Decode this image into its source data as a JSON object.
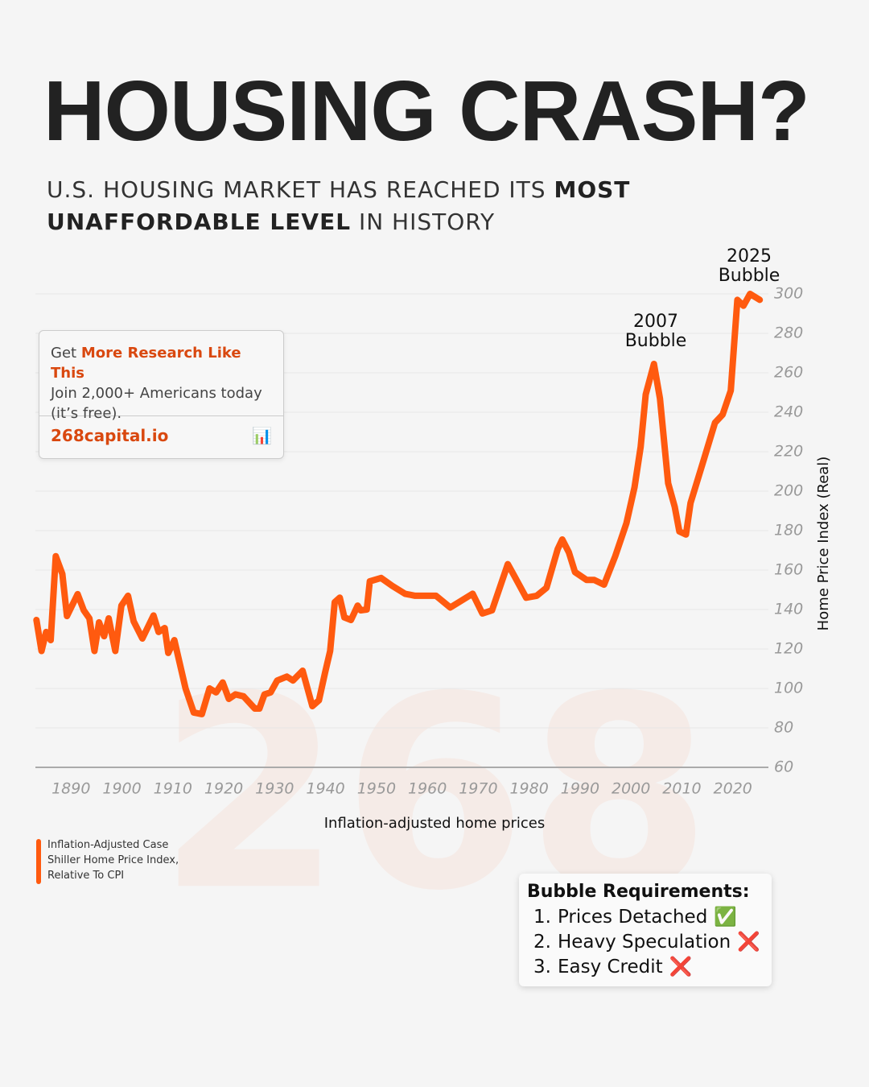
{
  "chart_data": {
    "type": "line",
    "title": "HOUSING CRASH?",
    "subtitle": [
      "U.S. HOUSING MARKET HAS REACHED ITS",
      "MOST UNAFFORDABLE LEVEL",
      "IN HISTORY"
    ],
    "x": [
      1883.2,
      1884.2,
      1885.1,
      1886,
      1887,
      1888.3,
      1889.2,
      1891.3,
      1892.5,
      1893.6,
      1894.6,
      1895.5,
      1896.5,
      1897.4,
      1898.7,
      1899.9,
      1901.2,
      1902.3,
      1904,
      1906.2,
      1907.2,
      1908.4,
      1909.1,
      1910.3,
      1912.5,
      1914.1,
      1915.7,
      1917.2,
      1918.5,
      1919.8,
      1921,
      1922.3,
      1923.9,
      1926.1,
      1927,
      1928,
      1929.2,
      1930.5,
      1932.4,
      1933.6,
      1935.5,
      1937.4,
      1938.7,
      1939.9,
      1940.9,
      1941.8,
      1942.8,
      1943.7,
      1945,
      1946.3,
      1946.9,
      1948.1,
      1948.7,
      1950.9,
      1953.1,
      1955.6,
      1957.6,
      1961.7,
      1964.5,
      1968.9,
      1970.8,
      1972.7,
      1975.8,
      1977.1,
      1979.4,
      1981.5,
      1983.4,
      1985.6,
      1986.5,
      1987.8,
      1989,
      1991.3,
      1992.8,
      1994.7,
      1996.9,
      1999.1,
      2000.7,
      2001.9,
      2002.9,
      2004.5,
      2005.7,
      2007.3,
      2008.6,
      2009.5,
      2010.8,
      2011.7,
      2014.3,
      2016.5,
      2018,
      2019.6,
      2020.9,
      2022.1,
      2023.4,
      2025.3
    ],
    "series": [
      {
        "name": "Inflation-Adjusted Case Shiller Home Price Index, Relative To CPI",
        "color": "#ff5a0f",
        "values": [
          134.7,
          119,
          128.6,
          124.5,
          167,
          158,
          136.7,
          147.8,
          139.6,
          135.5,
          119,
          133.5,
          126.5,
          135.5,
          119,
          142,
          147,
          134,
          125.3,
          137,
          128.6,
          130.6,
          118,
          124.5,
          100,
          87.8,
          87,
          100,
          98,
          103,
          94.7,
          97,
          96,
          89.8,
          89.8,
          97,
          98,
          104,
          106,
          104,
          109,
          91,
          94,
          108,
          119,
          143.7,
          146,
          136,
          134.7,
          142,
          139.6,
          140,
          154.3,
          156,
          152,
          148,
          147,
          147,
          141,
          148,
          138,
          139.6,
          163,
          157,
          146,
          147,
          151,
          170.6,
          175.5,
          169,
          159,
          155,
          155,
          152.6,
          167,
          183.7,
          202,
          222.4,
          249,
          264.5,
          247,
          204,
          192,
          179.6,
          178,
          194,
          216,
          234.7,
          238.8,
          251,
          297,
          294,
          300,
          297
        ]
      }
    ],
    "xlim": [
      1883,
      2027
    ],
    "ylim": [
      60,
      300
    ],
    "xticks": [
      1890,
      1900,
      1910,
      1920,
      1930,
      1940,
      1950,
      1960,
      1970,
      1980,
      1990,
      2000,
      2010,
      2020
    ],
    "yticks": [
      60,
      80,
      100,
      120,
      140,
      160,
      180,
      200,
      220,
      240,
      260,
      280,
      300
    ],
    "ylabel": "Home Price Index (Real)",
    "xlabel": "Inflation-adjusted home prices",
    "annotations": [
      "2007 Bubble",
      "2025 Bubble"
    ],
    "grid": true
  },
  "watermark": "268",
  "promo": {
    "lead": "Get",
    "highlight": "More Research Like This",
    "text": "Join 2,000+ Americans today (it’s free).",
    "link": "268capital.io",
    "icon": "📊"
  },
  "requirements": {
    "title": "Bubble Requirements:",
    "items": [
      {
        "number": "1.",
        "text": "Prices Detached",
        "icon": "✅"
      },
      {
        "number": "2.",
        "text": "Heavy Speculation",
        "icon": "❌"
      },
      {
        "number": "3.",
        "text": "Easy Credit",
        "icon": "❌"
      }
    ]
  }
}
